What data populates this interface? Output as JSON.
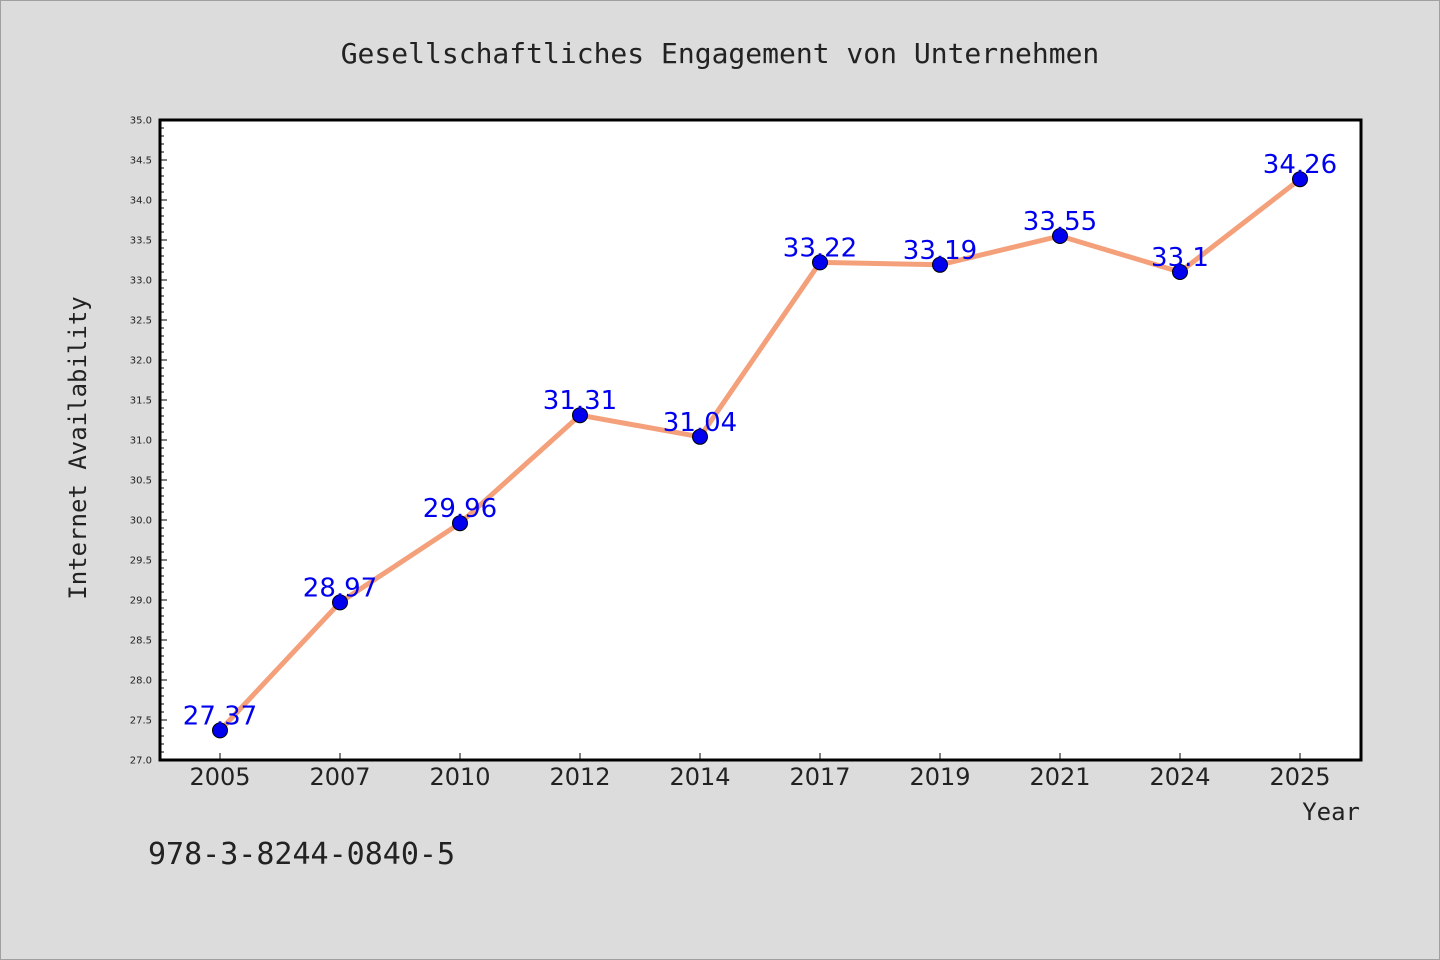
{
  "chart_data": {
    "type": "line",
    "title": "Gesellschaftliches Engagement von Unternehmen",
    "xlabel": "Year",
    "ylabel": "Internet Availability",
    "categories": [
      "2005",
      "2007",
      "2010",
      "2012",
      "2014",
      "2017",
      "2019",
      "2021",
      "2024",
      "2025"
    ],
    "series": [
      {
        "values": [
          27.37,
          28.97,
          29.96,
          31.31,
          31.04,
          33.22,
          33.19,
          33.55,
          33.1,
          34.26
        ],
        "data_labels": [
          "27.37",
          "28.97",
          "29.96",
          "31.31",
          "31.04",
          "33.22",
          "33.19",
          "33.55",
          "33.1",
          "34.26"
        ]
      }
    ],
    "ylim": [
      27.0,
      35.0
    ],
    "yticks": [
      "27.0",
      "27.5",
      "28.0",
      "28.5",
      "29.0",
      "29.5",
      "30.0",
      "30.5",
      "31.0",
      "31.5",
      "32.0",
      "32.5",
      "33.0",
      "33.5",
      "34.0",
      "34.5",
      "35.0"
    ],
    "grid": false,
    "line_color": "#f4a07a",
    "marker_color": "#0000ee",
    "label_color": "#0000ee"
  },
  "footer": {
    "isbn": "978-3-8244-0840-5"
  }
}
